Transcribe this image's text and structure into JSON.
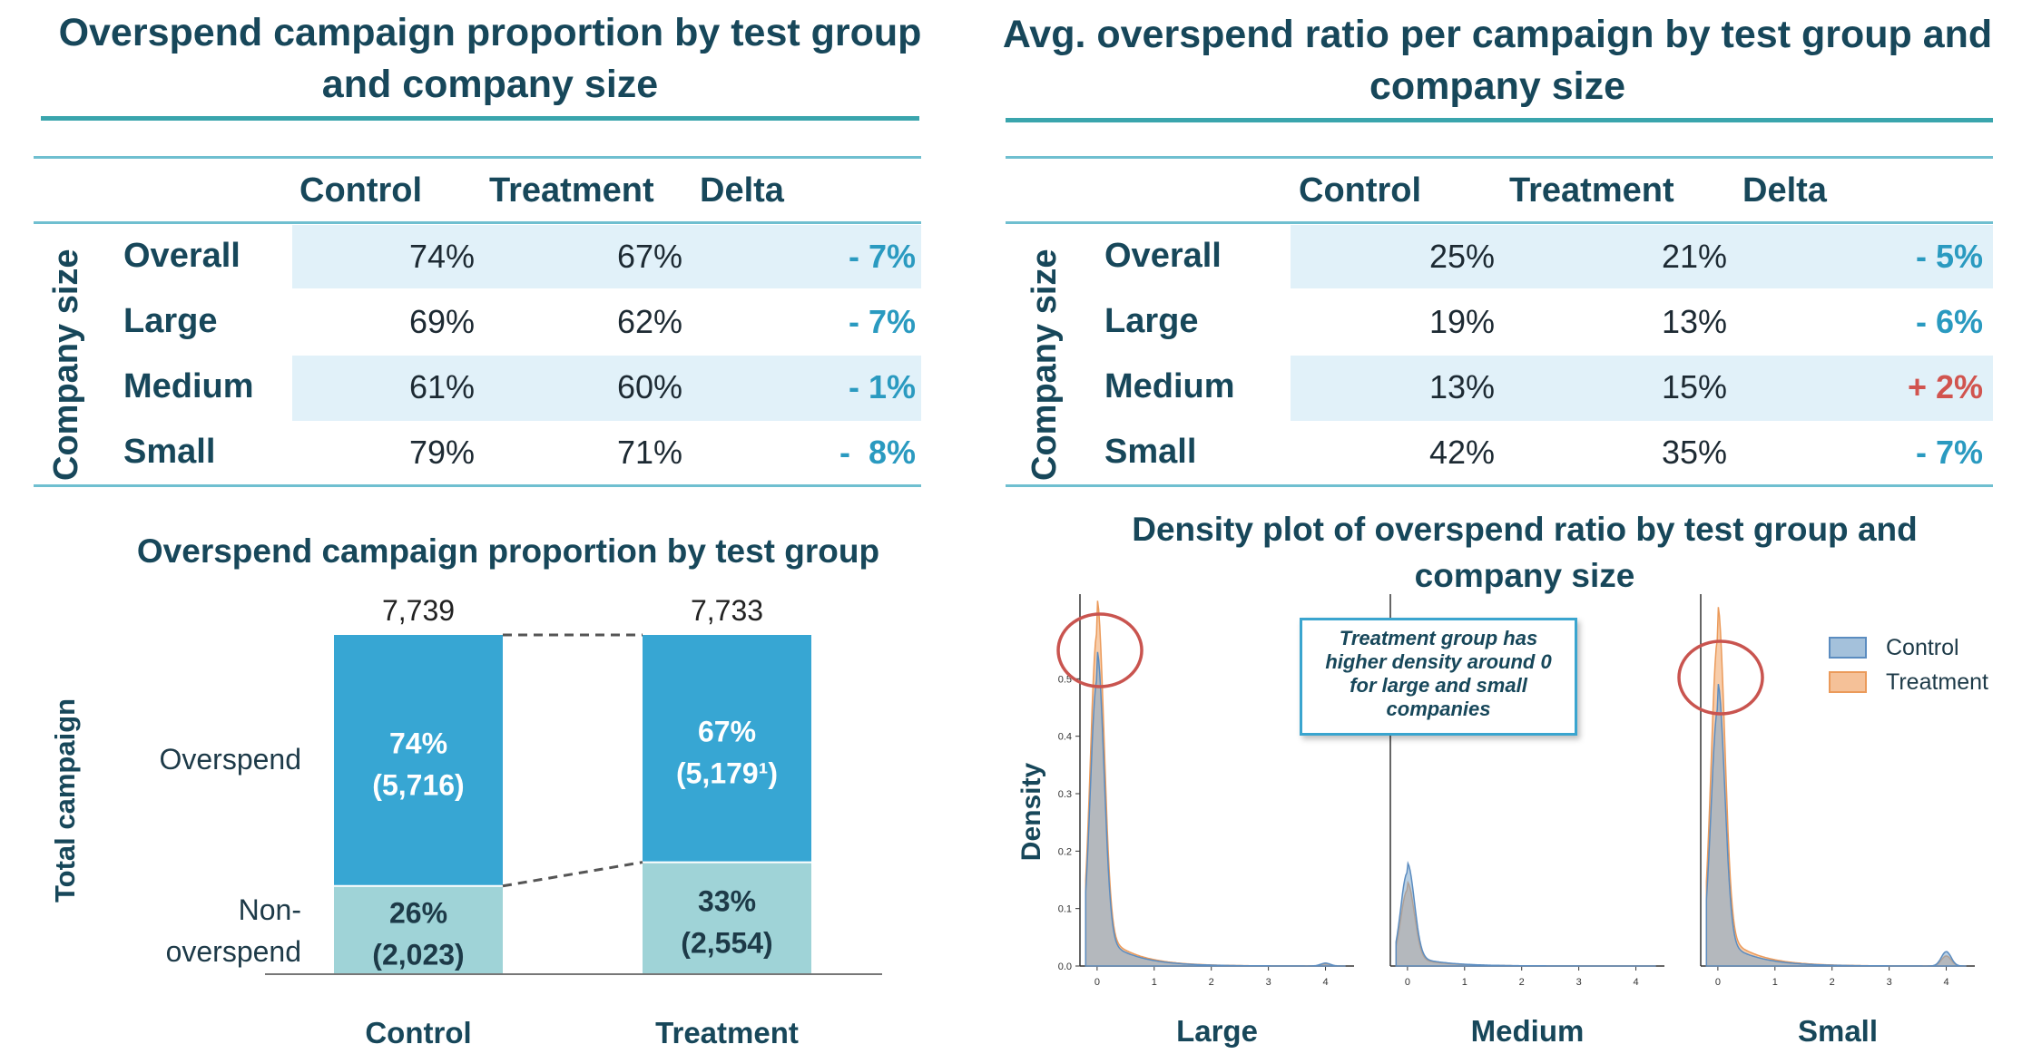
{
  "colors": {
    "title": "#17475a",
    "rule": "#3aa5ad",
    "band": "#e1f1f9",
    "delta_neg": "#2a9ac0",
    "delta_pos": "#d1544f",
    "overspend": "#37a6d3",
    "non_overspend": "#9fd3d7",
    "control": "#7ea7cc",
    "treatment": "#f2b27e",
    "overlap": "#bbb3ad",
    "circle": "#c9544f"
  },
  "table1": {
    "title": "Overspend campaign proportion by test group and company size",
    "row_group_label": "Company size",
    "columns": [
      "Control",
      "Treatment",
      "Delta"
    ],
    "rows": [
      {
        "label": "Overall",
        "control": "74%",
        "treatment": "67%",
        "delta": "- 7%",
        "sign": "neg"
      },
      {
        "label": "Large",
        "control": "69%",
        "treatment": "62%",
        "delta": "- 7%",
        "sign": "neg"
      },
      {
        "label": "Medium",
        "control": "61%",
        "treatment": "60%",
        "delta": "- 1%",
        "sign": "neg"
      },
      {
        "label": "Small",
        "control": "79%",
        "treatment": "71%",
        "delta": "-  8%",
        "sign": "neg"
      }
    ]
  },
  "table2": {
    "title": "Avg. overspend ratio per campaign by test group and company size",
    "row_group_label": "Company size",
    "columns": [
      "Control",
      "Treatment",
      "Delta"
    ],
    "rows": [
      {
        "label": "Overall",
        "control": "25%",
        "treatment": "21%",
        "delta": "- 5%",
        "sign": "neg"
      },
      {
        "label": "Large",
        "control": "19%",
        "treatment": "13%",
        "delta": "- 6%",
        "sign": "neg"
      },
      {
        "label": "Medium",
        "control": "13%",
        "treatment": "15%",
        "delta": "+ 2%",
        "sign": "pos"
      },
      {
        "label": "Small",
        "control": "42%",
        "treatment": "35%",
        "delta": "- 7%",
        "sign": "neg"
      }
    ]
  },
  "chart_data": [
    {
      "type": "bar",
      "stacked": true,
      "title": "Overspend campaign proportion by test group",
      "ylabel": "Total campaign",
      "categories": [
        "Control",
        "Treatment"
      ],
      "totals": [
        "7,739",
        "7,733"
      ],
      "series": [
        {
          "name": "Non-\noverspend",
          "pct": [
            26,
            33
          ],
          "labels": [
            "26%\n(2,023)",
            "33%\n(2,554)"
          ],
          "color": "#9fd3d7"
        },
        {
          "name": "Overspend",
          "pct": [
            74,
            67
          ],
          "labels": [
            "74%\n(5,716)",
            "67%\n(5,179¹)"
          ],
          "color": "#37a6d3"
        }
      ]
    },
    {
      "type": "area",
      "title": "Density plot of overspend ratio by test group and company size",
      "ylabel": "Density",
      "panels": [
        "Large",
        "Medium",
        "Small"
      ],
      "xlim": [
        -0.3,
        4.5
      ],
      "ylim": [
        0,
        0.6
      ],
      "xticks": [
        "0",
        "1",
        "2",
        "3",
        "4"
      ],
      "yticks": [
        "0.0",
        "0.1",
        "0.2",
        "0.3",
        "0.4",
        "0.5"
      ],
      "legend": [
        "Control",
        "Treatment"
      ],
      "legend_position": "top-right",
      "annotation": "Treatment group has higher density around 0 for large and small companies",
      "peaks": {
        "Large": {
          "control": 0.49,
          "treatment": 0.57
        },
        "Medium": {
          "control": 0.16,
          "treatment": 0.13
        },
        "Small": {
          "control": 0.44,
          "treatment": 0.56
        }
      },
      "secondary_bump_at_4": {
        "Large": 0.005,
        "Medium": 0.0,
        "Small": 0.025
      }
    }
  ]
}
